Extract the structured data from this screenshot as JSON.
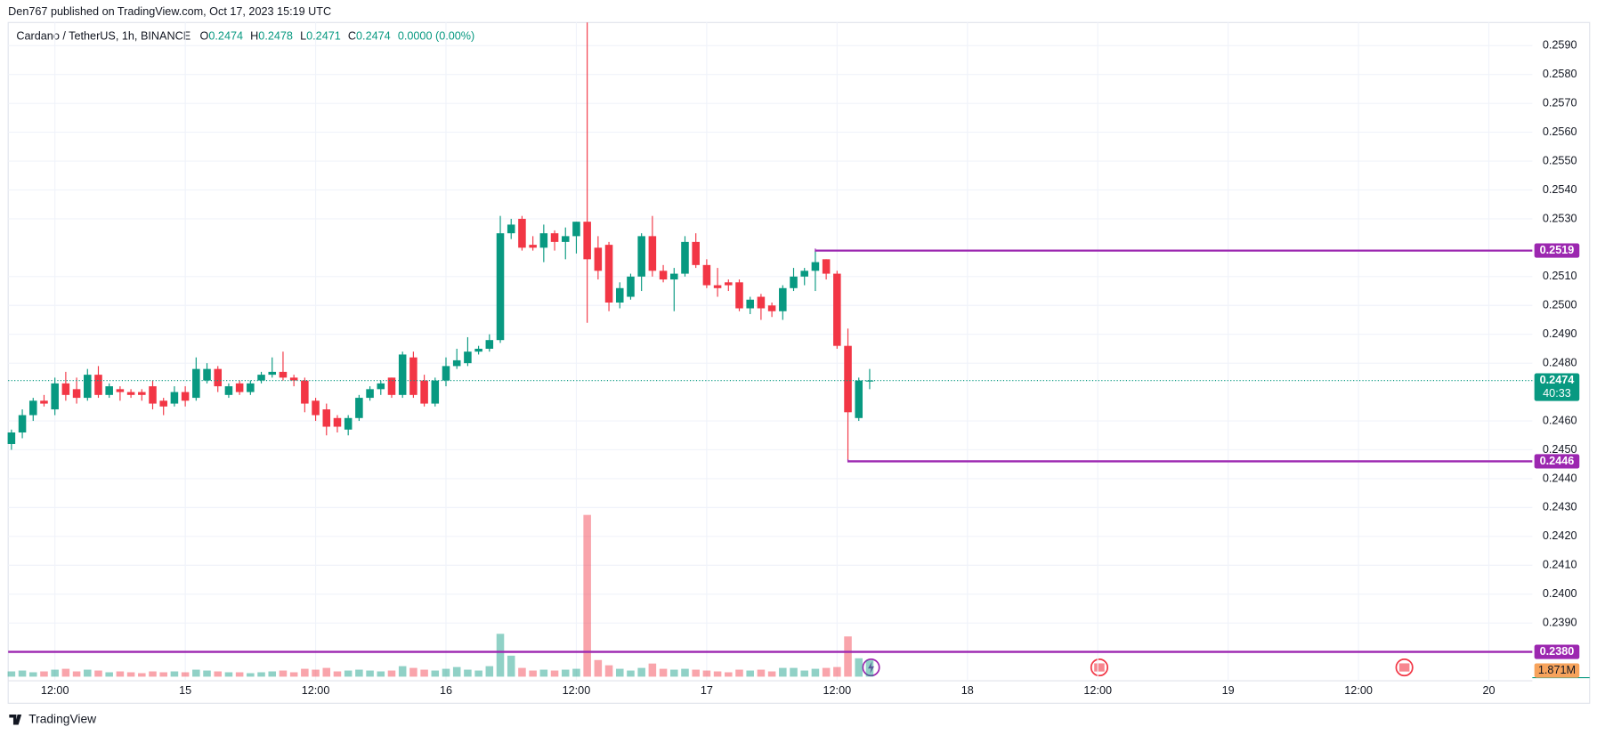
{
  "header": {
    "published": "Den767 published on TradingView.com, Oct 17, 2023 15:19 UTC",
    "symbol": "Cardano / TetherUS, 1h, BINANCE",
    "ohlc": [
      {
        "key": "O",
        "value": "0.2474"
      },
      {
        "key": "H",
        "value": "0.2478"
      },
      {
        "key": "L",
        "value": "0.2471"
      },
      {
        "key": "C",
        "value": "0.2474"
      }
    ],
    "change": "0.0000 (0.00%)"
  },
  "footer": "TradingView",
  "chart_data": {
    "type": "candlestick",
    "up_color": "#089981",
    "down_color": "#f23645",
    "x": [
      0,
      1,
      2,
      3,
      4,
      5,
      6,
      7,
      8,
      9,
      10,
      11,
      12,
      13,
      14,
      15,
      16,
      17,
      18,
      19,
      20,
      21,
      22,
      23,
      24,
      25,
      26,
      27,
      28,
      29,
      30,
      31,
      32,
      33,
      34,
      35,
      36,
      37,
      38,
      39,
      40,
      41,
      42,
      43,
      44,
      45,
      46,
      47,
      48,
      49,
      50,
      51,
      52,
      53,
      54,
      55,
      56,
      57,
      58,
      59,
      60,
      61,
      62,
      63,
      64,
      65,
      66,
      67,
      68,
      69,
      70,
      71,
      72,
      73,
      74,
      75,
      76,
      77,
      78,
      79
    ],
    "open": [
      0.2452,
      0.2456,
      0.2462,
      0.2467,
      0.2464,
      0.2473,
      0.2471,
      0.2468,
      0.2476,
      0.2469,
      0.2471,
      0.247,
      0.247,
      0.2472,
      0.2467,
      0.2466,
      0.247,
      0.2468,
      0.2474,
      0.2478,
      0.2469,
      0.2473,
      0.247,
      0.2474,
      0.2476,
      0.2477,
      0.2475,
      0.2474,
      0.2467,
      0.2464,
      0.2461,
      0.2457,
      0.2461,
      0.2468,
      0.2471,
      0.2475,
      0.2469,
      0.2482,
      0.2474,
      0.2466,
      0.2474,
      0.2479,
      0.248,
      0.2484,
      0.2485,
      0.2488,
      0.2525,
      0.253,
      0.2521,
      0.252,
      0.2525,
      0.2522,
      0.2524,
      0.2529,
      0.252,
      0.2521,
      0.2501,
      0.2503,
      0.251,
      0.2524,
      0.2512,
      0.2509,
      0.2511,
      0.2522,
      0.2514,
      0.2507,
      0.2508,
      0.2508,
      0.2499,
      0.2503,
      0.25,
      0.2498,
      0.2506,
      0.251,
      0.2512,
      0.2516,
      0.2511,
      0.2486,
      0.2461,
      0.2474
    ],
    "high": [
      0.2457,
      0.2464,
      0.2468,
      0.2469,
      0.2475,
      0.2477,
      0.2475,
      0.2478,
      0.2479,
      0.2473,
      0.2472,
      0.2471,
      0.2471,
      0.2474,
      0.2468,
      0.2472,
      0.2472,
      0.2482,
      0.248,
      0.2479,
      0.2473,
      0.2474,
      0.2474,
      0.2477,
      0.2482,
      0.2484,
      0.2476,
      0.2475,
      0.2468,
      0.2466,
      0.2462,
      0.2462,
      0.2469,
      0.2472,
      0.2474,
      0.2475,
      0.2484,
      0.2484,
      0.2476,
      0.2475,
      0.2482,
      0.2485,
      0.2489,
      0.2486,
      0.249,
      0.2531,
      0.253,
      0.2531,
      0.2524,
      0.2528,
      0.2526,
      0.2527,
      0.2529,
      0.2598,
      0.2524,
      0.2522,
      0.2508,
      0.2511,
      0.2525,
      0.2531,
      0.2514,
      0.2513,
      0.2524,
      0.2525,
      0.2516,
      0.2513,
      0.2509,
      0.2509,
      0.2503,
      0.2504,
      0.2501,
      0.2507,
      0.2513,
      0.2513,
      0.2519,
      0.2516,
      0.2512,
      0.2492,
      0.2475,
      0.2478
    ],
    "low": [
      0.245,
      0.2454,
      0.246,
      0.2465,
      0.2462,
      0.2467,
      0.2466,
      0.2467,
      0.2468,
      0.2468,
      0.2467,
      0.2468,
      0.2467,
      0.2464,
      0.2462,
      0.2465,
      0.2465,
      0.2467,
      0.2473,
      0.247,
      0.2468,
      0.2469,
      0.2469,
      0.2473,
      0.2475,
      0.2474,
      0.2472,
      0.2463,
      0.246,
      0.2455,
      0.2456,
      0.2455,
      0.246,
      0.2467,
      0.2469,
      0.2468,
      0.2468,
      0.2468,
      0.2465,
      0.2465,
      0.2472,
      0.2478,
      0.2479,
      0.2483,
      0.2484,
      0.2487,
      0.2523,
      0.2519,
      0.2519,
      0.2515,
      0.2519,
      0.2516,
      0.2518,
      0.2494,
      0.2509,
      0.2498,
      0.2499,
      0.2502,
      0.2505,
      0.251,
      0.2508,
      0.2498,
      0.251,
      0.2513,
      0.2506,
      0.2503,
      0.2505,
      0.2498,
      0.2497,
      0.2495,
      0.2496,
      0.2495,
      0.2505,
      0.2507,
      0.2505,
      0.2509,
      0.2485,
      0.2446,
      0.246,
      0.2471
    ],
    "close": [
      0.2456,
      0.2462,
      0.2467,
      0.2466,
      0.2473,
      0.2469,
      0.2468,
      0.2476,
      0.2469,
      0.2472,
      0.247,
      0.2469,
      0.2469,
      0.2466,
      0.2465,
      0.247,
      0.2467,
      0.2478,
      0.2478,
      0.2472,
      0.2472,
      0.247,
      0.2473,
      0.2476,
      0.2477,
      0.2475,
      0.2474,
      0.2466,
      0.2462,
      0.2458,
      0.2458,
      0.2461,
      0.2468,
      0.2471,
      0.2473,
      0.2469,
      0.2483,
      0.2469,
      0.2466,
      0.2474,
      0.2479,
      0.2481,
      0.2484,
      0.2485,
      0.2488,
      0.2525,
      0.2528,
      0.252,
      0.252,
      0.2525,
      0.2522,
      0.2524,
      0.2529,
      0.2516,
      0.2512,
      0.2501,
      0.2506,
      0.251,
      0.2524,
      0.2512,
      0.2509,
      0.2511,
      0.2522,
      0.2514,
      0.2507,
      0.2506,
      0.2507,
      0.2499,
      0.2502,
      0.2499,
      0.2498,
      0.2506,
      0.251,
      0.2512,
      0.2515,
      0.2511,
      0.2486,
      0.2463,
      0.2474,
      0.2474
    ],
    "volume": {
      "values": [
        0.6,
        0.7,
        0.5,
        0.6,
        0.8,
        0.9,
        0.6,
        0.8,
        0.7,
        0.5,
        0.6,
        0.5,
        0.4,
        0.6,
        0.5,
        0.6,
        0.5,
        0.8,
        0.7,
        0.6,
        0.5,
        0.5,
        0.4,
        0.5,
        0.6,
        0.7,
        0.5,
        0.9,
        0.8,
        1.0,
        0.6,
        0.7,
        0.8,
        0.7,
        0.6,
        0.7,
        1.2,
        1.0,
        0.8,
        0.7,
        0.9,
        1.1,
        0.8,
        0.7,
        1.2,
        4.9,
        2.4,
        1.0,
        0.7,
        0.8,
        0.7,
        0.8,
        0.9,
        18.5,
        1.9,
        1.3,
        0.9,
        0.7,
        1.0,
        1.5,
        0.9,
        0.8,
        0.9,
        0.8,
        0.7,
        0.6,
        0.5,
        0.8,
        0.7,
        0.8,
        0.6,
        1.0,
        1.0,
        0.7,
        0.9,
        1.0,
        1.1,
        4.6,
        2.1,
        1.871
      ],
      "last_label": "1.871M",
      "label_color": "#f7a35c"
    },
    "xlim": [
      -0.3,
      140
    ],
    "xticks": [
      {
        "value": 4,
        "label": "12:00"
      },
      {
        "value": 16,
        "label": "15"
      },
      {
        "value": 28,
        "label": "12:00"
      },
      {
        "value": 40,
        "label": "16"
      },
      {
        "value": 52,
        "label": "12:00"
      },
      {
        "value": 64,
        "label": "17"
      },
      {
        "value": 76,
        "label": "12:00"
      },
      {
        "value": 88,
        "label": "18"
      },
      {
        "value": 100,
        "label": "12:00"
      },
      {
        "value": 112,
        "label": "19"
      },
      {
        "value": 124,
        "label": "12:00"
      },
      {
        "value": 136,
        "label": "20"
      }
    ],
    "ylim": [
      0.237,
      0.2598
    ],
    "yticks": [
      {
        "value": 0.259,
        "label": "0.2590"
      },
      {
        "value": 0.258,
        "label": "0.2580"
      },
      {
        "value": 0.257,
        "label": "0.2570"
      },
      {
        "value": 0.256,
        "label": "0.2560"
      },
      {
        "value": 0.255,
        "label": "0.2550"
      },
      {
        "value": 0.254,
        "label": "0.2540"
      },
      {
        "value": 0.253,
        "label": "0.2530"
      },
      {
        "value": 0.251,
        "label": "0.2510"
      },
      {
        "value": 0.25,
        "label": "0.2500"
      },
      {
        "value": 0.249,
        "label": "0.2490"
      },
      {
        "value": 0.248,
        "label": "0.2480"
      },
      {
        "value": 0.246,
        "label": "0.2460"
      },
      {
        "value": 0.245,
        "label": "0.2450"
      },
      {
        "value": 0.244,
        "label": "0.2440"
      },
      {
        "value": 0.243,
        "label": "0.2430"
      },
      {
        "value": 0.242,
        "label": "0.2420"
      },
      {
        "value": 0.241,
        "label": "0.2410"
      },
      {
        "value": 0.24,
        "label": "0.2400"
      },
      {
        "value": 0.239,
        "label": "0.2390"
      }
    ],
    "grid": true,
    "levels": [
      {
        "value": 0.2519,
        "label": "0.2519",
        "start": 74
      },
      {
        "value": 0.2446,
        "label": "0.2446",
        "start": 77
      },
      {
        "value": 0.238,
        "label": "0.2380"
      }
    ],
    "level_color": "#9c27b0",
    "last_price": {
      "value": 0.2474,
      "label": "0.2474",
      "countdown": "40:33"
    }
  }
}
